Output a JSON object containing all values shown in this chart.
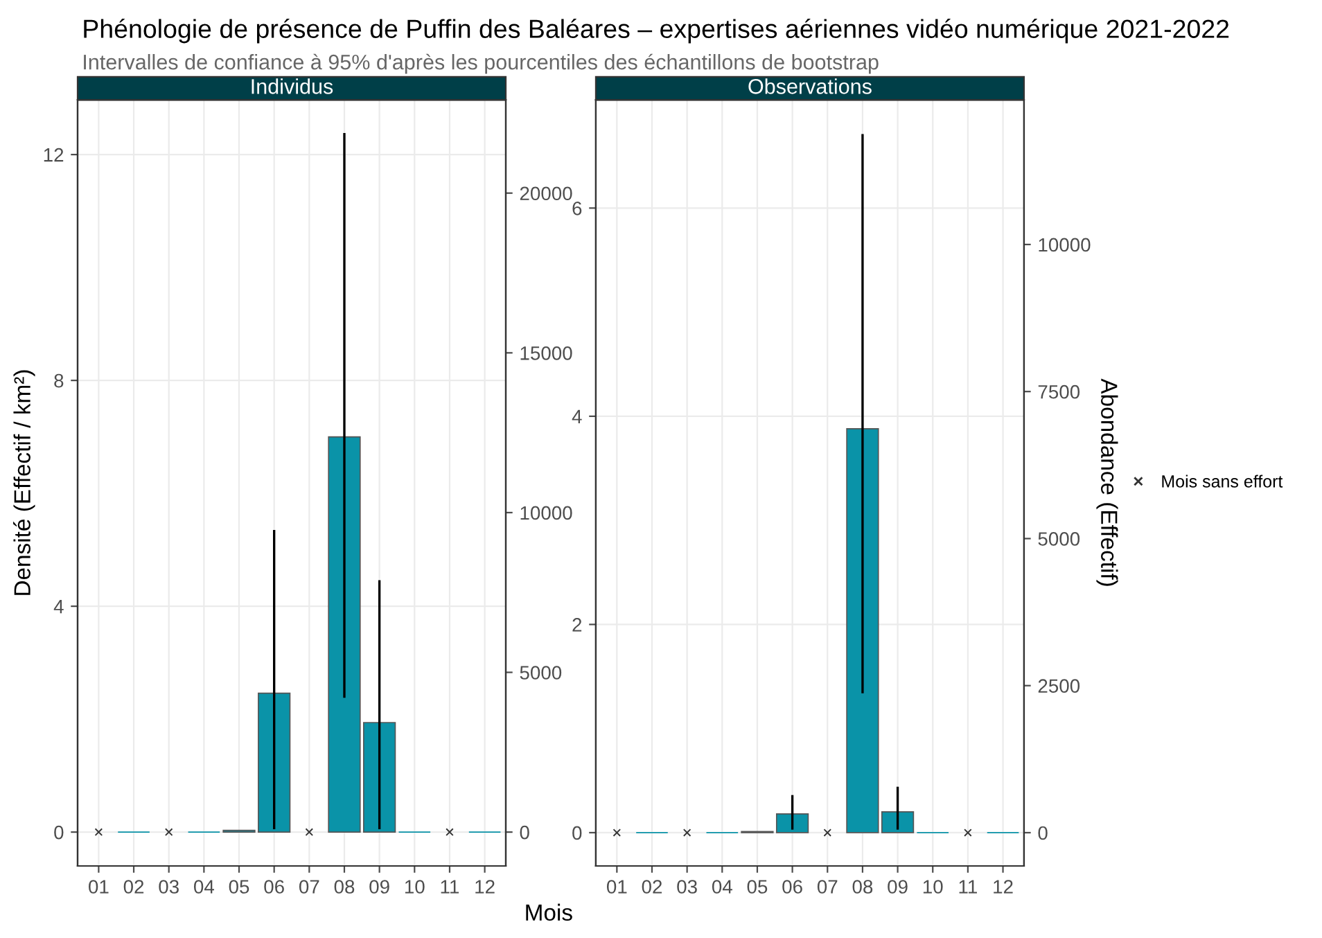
{
  "chart_data": [
    {
      "type": "bar",
      "title": "Individus",
      "annotations": [
        "Phénologie de présence de Puffin des Baléares – expertises aériennes vidéo numérique 2021-2022",
        "Intervalles de confiance à 95% d'après les pourcentiles des échantillons de bootstrap"
      ],
      "xlabel": "Mois",
      "ylabel": "Densité (Effectif / km²)",
      "categories": [
        "01",
        "02",
        "03",
        "04",
        "05",
        "06",
        "07",
        "08",
        "09",
        "10",
        "11",
        "12"
      ],
      "series": [
        {
          "color": "#0a93a8",
          "values": [
            null,
            0,
            null,
            0,
            0.03,
            2.46,
            null,
            7.0,
            1.94,
            0,
            null,
            0
          ],
          "errors": [
            null,
            null,
            null,
            null,
            null,
            [
              0.07,
              5.33
            ],
            null,
            [
              2.4,
              12.36
            ],
            [
              0.07,
              4.44
            ],
            null,
            null,
            null
          ]
        },
        {
          "type": "scatter",
          "color": "#333333",
          "marker": "cross",
          "x": [
            "01",
            "03",
            "07",
            "11"
          ],
          "values": [
            0,
            0,
            0,
            0
          ]
        }
      ],
      "ylim": [
        -0.6,
        12.97
      ],
      "yticks": [
        0,
        4,
        8,
        12
      ],
      "y2lim": [
        -1060,
        22920
      ],
      "y2ticks": [
        0,
        5000,
        10000,
        15000,
        20000
      ],
      "grid": true
    },
    {
      "type": "bar",
      "title": "Observations",
      "y2label": "Abondance (Effectif)",
      "legend": "right",
      "categories": [
        "01",
        "02",
        "03",
        "04",
        "05",
        "06",
        "07",
        "08",
        "09",
        "10",
        "11",
        "12"
      ],
      "series": [
        {
          "color": "#0a93a8",
          "values": [
            null,
            0,
            null,
            0,
            0.01,
            0.18,
            null,
            3.88,
            0.2,
            0,
            null,
            0
          ],
          "errors": [
            null,
            null,
            null,
            null,
            null,
            [
              0.04,
              0.35
            ],
            null,
            [
              1.35,
              6.7
            ],
            [
              0.04,
              0.43
            ],
            null,
            null,
            null
          ]
        },
        {
          "type": "scatter",
          "name": "Mois sans effort",
          "color": "#333333",
          "marker": "cross",
          "x": [
            "01",
            "03",
            "07",
            "11"
          ],
          "values": [
            0,
            0,
            0,
            0
          ]
        }
      ],
      "ylim": [
        -0.32,
        7.04
      ],
      "yticks": [
        0,
        2,
        4,
        6
      ],
      "y2lim": [
        -566,
        12460
      ],
      "y2ticks": [
        0,
        2500,
        5000,
        7500,
        10000
      ],
      "grid": true
    }
  ]
}
